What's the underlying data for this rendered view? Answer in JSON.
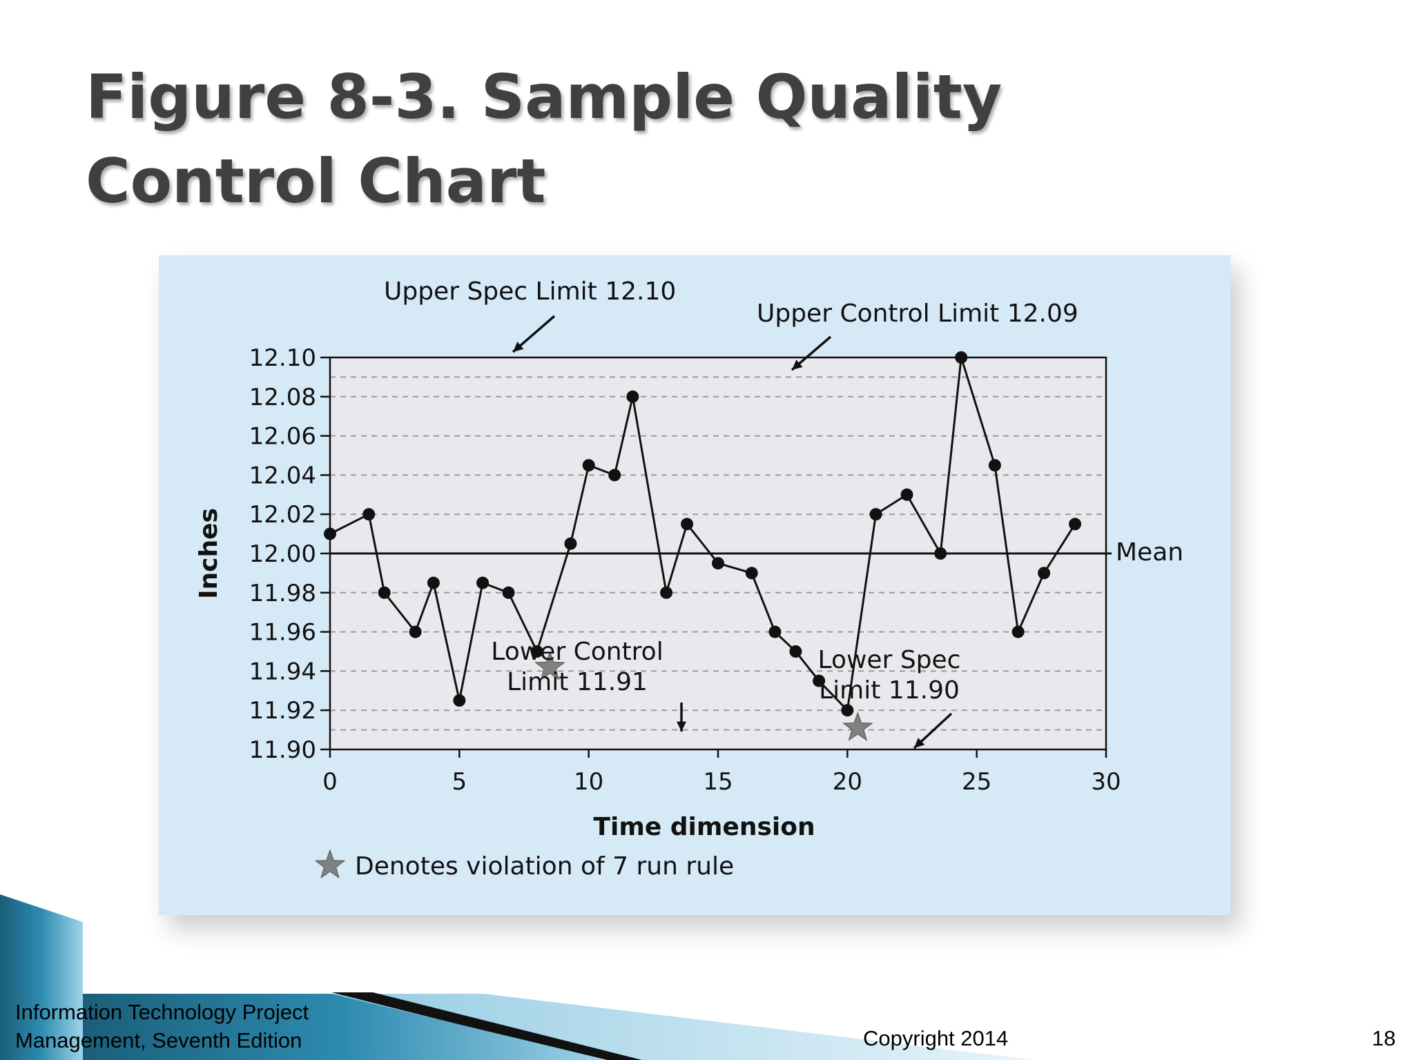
{
  "slide": {
    "title_line1": "Figure 8-3. Sample Quality",
    "title_line2": "Control Chart",
    "footer_line1": "Information Technology Project",
    "footer_line2": "Management, Seventh Edition",
    "copyright": "Copyright 2014",
    "page_number": "18"
  },
  "colors": {
    "panel_background": "#d6e9f6",
    "plot_background": "#e9e9ed",
    "series_line": "#111111",
    "violation_star": "#808080",
    "decor_band": "#1f6f8b"
  },
  "chart_data": {
    "type": "line",
    "xlabel": "Time dimension",
    "ylabel": "Inches",
    "xlim": [
      0,
      30
    ],
    "ylim": [
      11.9,
      12.1
    ],
    "x_ticks": [
      "0",
      "5",
      "10",
      "15",
      "20",
      "25",
      "30"
    ],
    "y_ticks": [
      "12.10",
      "12.08",
      "12.06",
      "12.04",
      "12.02",
      "12.00",
      "11.98",
      "11.96",
      "11.94",
      "11.92",
      "11.90"
    ],
    "grid": "dashed horizontal",
    "series": [
      {
        "x": [
          0,
          1.5,
          2.1,
          3.3,
          4.0,
          5.0,
          5.9,
          6.9,
          8.0,
          9.3,
          10.0,
          11.0,
          11.7,
          13.0,
          13.8,
          15.0,
          16.3,
          17.2,
          18.0,
          18.9,
          20.0,
          21.1,
          22.3,
          23.6,
          24.4,
          25.7,
          26.6,
          27.6,
          28.8
        ],
        "values": [
          12.01,
          12.02,
          11.98,
          11.96,
          11.985,
          11.925,
          11.985,
          11.98,
          11.95,
          12.005,
          12.045,
          12.04,
          12.08,
          11.98,
          12.015,
          11.995,
          11.99,
          11.96,
          11.95,
          11.935,
          11.92,
          12.02,
          12.03,
          12.0,
          12.1,
          12.045,
          11.96,
          11.99,
          12.015
        ]
      }
    ],
    "reference_lines": [
      {
        "label": "Upper Spec Limit 12.10",
        "value": 12.1
      },
      {
        "label": "Upper Control Limit 12.09",
        "value": 12.09
      },
      {
        "label": "Mean",
        "value": 12.0
      },
      {
        "label": "Lower Control Limit 11.91",
        "value": 11.91
      },
      {
        "label": "Lower Spec Limit 11.90",
        "value": 11.9
      }
    ],
    "labels": {
      "usl": "Upper Spec Limit 12.10",
      "ucl": "Upper Control Limit 12.09",
      "mean": "Mean",
      "lcl_line1": "Lower Control",
      "lcl_line2": "Limit 11.91",
      "lsl_line1": "Lower Spec",
      "lsl_line2": "Limit 11.90"
    },
    "violations": [
      {
        "x": 8.5,
        "value": 11.942
      },
      {
        "x": 20.4,
        "value": 11.911
      }
    ],
    "legend_text": "Denotes violation of 7 run rule"
  }
}
